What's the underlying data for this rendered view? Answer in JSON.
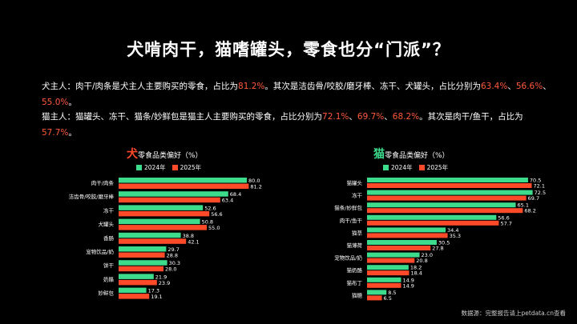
{
  "title": "犬啃肉干，猫嗜罐头，零食也分“门派”？",
  "dog_para": [
    {
      "t": "犬主人：肉干/肉条是犬主人主要购买的零食，占比为",
      "h": false
    },
    {
      "t": "81.2%",
      "h": true
    },
    {
      "t": "。其次是洁齿骨/咬胶/磨牙棒、冻干、犬罐头，占比分别为",
      "h": false
    },
    {
      "t": "63.4%",
      "h": true
    },
    {
      "t": "、",
      "h": false
    },
    {
      "t": "56.6%",
      "h": true
    },
    {
      "t": "、",
      "h": false
    },
    {
      "t": "55.0%",
      "h": true
    },
    {
      "t": "。",
      "h": false
    }
  ],
  "cat_para": [
    {
      "t": "猫主人：猫罐头、冻干、猫条/妙鲜包是猫主人主要购买的零食，占比分别为",
      "h": false
    },
    {
      "t": "72.1%",
      "h": true
    },
    {
      "t": "、",
      "h": false
    },
    {
      "t": "69.7%",
      "h": true
    },
    {
      "t": "、",
      "h": false
    },
    {
      "t": "68.2%",
      "h": true
    },
    {
      "t": "。其次是肉干/鱼干，占比为",
      "h": false
    },
    {
      "t": "57.7%",
      "h": true
    },
    {
      "t": "。",
      "h": false
    }
  ],
  "colors": {
    "y2024": "#3ddc8c",
    "y2025": "#ff4a2a",
    "dog_accent": "#ff4a2a",
    "cat_accent": "#3ddc8c"
  },
  "legend": {
    "y2024": "2024年",
    "y2025": "2025年"
  },
  "source": "数据源：完整报告请上petdata.cn查看",
  "chart_data": [
    {
      "type": "bar",
      "orientation": "horizontal",
      "title_big": "犬",
      "title_rest": "零食品类偏好（%）",
      "categories": [
        "肉干/肉条",
        "洁齿骨/咬胶/磨牙棒",
        "冻干",
        "犬罐头",
        "香肠",
        "宠物饮品/奶",
        "饼干",
        "奶酪",
        "妙鲜包"
      ],
      "series": [
        {
          "name": "2024年",
          "values": [
            80.0,
            68.4,
            52.6,
            50.8,
            38.8,
            29.7,
            30.3,
            21.9,
            17.3
          ]
        },
        {
          "name": "2025年",
          "values": [
            81.2,
            63.4,
            56.6,
            55.0,
            42.1,
            28.8,
            28.0,
            23.9,
            19.1
          ]
        }
      ],
      "xlim": [
        0,
        90
      ]
    },
    {
      "type": "bar",
      "orientation": "horizontal",
      "title_big": "猫",
      "title_rest": "零食品类偏好（%）",
      "categories": [
        "猫罐头",
        "冻干",
        "猫条/妙鲜包",
        "肉干/鱼干",
        "猫草",
        "猫薄荷",
        "宠物饮品/奶",
        "猫奶酪",
        "猫布丁",
        "猫糖"
      ],
      "series": [
        {
          "name": "2024年",
          "values": [
            70.5,
            72.5,
            65.1,
            56.6,
            34.4,
            30.5,
            23.0,
            18.2,
            14.9,
            8.5
          ]
        },
        {
          "name": "2025年",
          "values": [
            72.1,
            69.7,
            68.2,
            57.7,
            35.3,
            27.8,
            20.8,
            18.4,
            14.9,
            6.5
          ]
        }
      ],
      "xlim": [
        0,
        80
      ]
    }
  ]
}
